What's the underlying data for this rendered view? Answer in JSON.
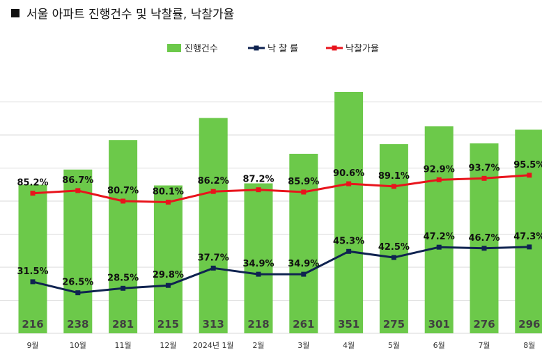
{
  "title": "서울 아파트 진행건수 및 낙찰률, 낙찰가율",
  "colors": {
    "bar": "#6cc94a",
    "rate_line": "#0f2350",
    "price_line": "#e8141c",
    "grid": "#d9d9d9"
  },
  "chart_data": {
    "type": "bar",
    "title": "서울 아파트 진행건수 및 낙찰률, 낙찰가율",
    "categories": [
      "9월",
      "10월",
      "11월",
      "12월",
      "2024년 1월",
      "2월",
      "3월",
      "4월",
      "5월",
      "6월",
      "7월",
      "8월"
    ],
    "legend_position": "top-center",
    "grid": true,
    "series": [
      {
        "name": "진행건수",
        "type": "bar",
        "values": [
          216,
          238,
          281,
          215,
          313,
          218,
          261,
          351,
          275,
          301,
          276,
          296
        ]
      },
      {
        "name": "낙 찰 률",
        "type": "line",
        "values": [
          31.5,
          26.5,
          28.5,
          29.8,
          37.7,
          34.9,
          34.9,
          45.3,
          42.5,
          47.2,
          46.7,
          47.3
        ]
      },
      {
        "name": "낙찰가율",
        "type": "line",
        "values": [
          85.2,
          86.7,
          80.7,
          80.1,
          86.2,
          87.2,
          85.9,
          90.6,
          89.1,
          92.9,
          93.7,
          95.5
        ]
      }
    ]
  }
}
